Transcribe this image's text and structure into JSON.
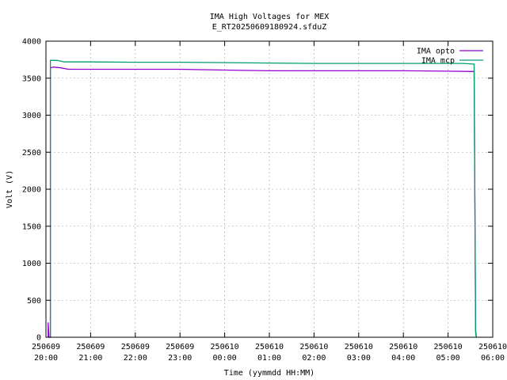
{
  "chart_data": {
    "type": "line",
    "title_line1": "IMA High Voltages for MEX",
    "title_line2": "E_RT20250609180924.sfduZ",
    "xlabel": "Time (yymmdd HH:MM)",
    "ylabel": "Volt (V)",
    "grid": true,
    "legend_position": "top-right",
    "xlim": [
      0,
      600
    ],
    "ylim": [
      0,
      4000
    ],
    "x_units": "minutes since 250609 20:00",
    "x_ticks": [
      {
        "x": 0,
        "date": "250609",
        "time": "20:00"
      },
      {
        "x": 60,
        "date": "250609",
        "time": "21:00"
      },
      {
        "x": 120,
        "date": "250609",
        "time": "22:00"
      },
      {
        "x": 180,
        "date": "250609",
        "time": "23:00"
      },
      {
        "x": 240,
        "date": "250610",
        "time": "00:00"
      },
      {
        "x": 300,
        "date": "250610",
        "time": "01:00"
      },
      {
        "x": 360,
        "date": "250610",
        "time": "02:00"
      },
      {
        "x": 420,
        "date": "250610",
        "time": "03:00"
      },
      {
        "x": 480,
        "date": "250610",
        "time": "04:00"
      },
      {
        "x": 540,
        "date": "250610",
        "time": "05:00"
      },
      {
        "x": 600,
        "date": "250610",
        "time": "06:00"
      }
    ],
    "y_ticks": [
      0,
      500,
      1000,
      1500,
      2000,
      2500,
      3000,
      3500,
      4000
    ],
    "series": [
      {
        "name": "IMA opto",
        "color": "#9400d3",
        "points": [
          [
            3,
            0
          ],
          [
            3,
            200
          ],
          [
            4,
            0
          ],
          [
            6,
            0
          ],
          [
            6,
            3640
          ],
          [
            10,
            3650
          ],
          [
            20,
            3640
          ],
          [
            30,
            3620
          ],
          [
            60,
            3620
          ],
          [
            120,
            3620
          ],
          [
            180,
            3620
          ],
          [
            240,
            3610
          ],
          [
            300,
            3600
          ],
          [
            360,
            3600
          ],
          [
            420,
            3600
          ],
          [
            480,
            3600
          ],
          [
            540,
            3595
          ],
          [
            575,
            3590
          ],
          [
            577,
            100
          ],
          [
            578,
            0
          ]
        ]
      },
      {
        "name": "IMA mcp",
        "color": "#009e73",
        "points": [
          [
            3,
            0
          ],
          [
            6,
            0
          ],
          [
            6,
            3740
          ],
          [
            15,
            3740
          ],
          [
            25,
            3720
          ],
          [
            60,
            3720
          ],
          [
            120,
            3715
          ],
          [
            180,
            3715
          ],
          [
            240,
            3710
          ],
          [
            300,
            3705
          ],
          [
            360,
            3700
          ],
          [
            420,
            3700
          ],
          [
            480,
            3700
          ],
          [
            540,
            3700
          ],
          [
            560,
            3700
          ],
          [
            575,
            3690
          ],
          [
            577,
            50
          ],
          [
            578,
            0
          ]
        ]
      }
    ]
  }
}
